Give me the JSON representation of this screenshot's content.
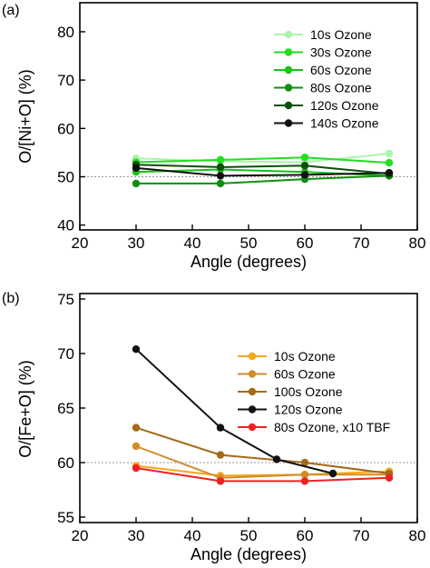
{
  "chart_data": [
    {
      "type": "line",
      "panel_label": "(a)",
      "xlabel": "Angle (degrees)",
      "ylabel": "O/[Ni+O] (%)",
      "xlim": [
        20,
        80
      ],
      "ylim": [
        39,
        86
      ],
      "xticks": [
        20,
        30,
        40,
        50,
        60,
        70,
        80
      ],
      "yticks": [
        40,
        50,
        60,
        70,
        80
      ],
      "reference_line": 50,
      "legend_position": "top-right",
      "x": [
        30,
        45,
        60,
        75
      ],
      "series": [
        {
          "name": "10s Ozone",
          "color": "#aaf5aa",
          "values": [
            53.8,
            53.2,
            53.0,
            54.8
          ]
        },
        {
          "name": "30s Ozone",
          "color": "#22dd22",
          "values": [
            53.0,
            53.5,
            54.0,
            52.9
          ]
        },
        {
          "name": "60s Ozone",
          "color": "#16c216",
          "values": [
            51.0,
            51.5,
            51.0,
            50.2
          ]
        },
        {
          "name": "80s Ozone",
          "color": "#0f900f",
          "values": [
            48.6,
            48.6,
            49.5,
            50.2
          ]
        },
        {
          "name": "120s Ozone",
          "color": "#0b4f0b",
          "values": [
            52.5,
            52.0,
            52.3,
            50.6
          ]
        },
        {
          "name": "140s Ozone",
          "color": "#111111",
          "values": [
            51.8,
            50.2,
            50.4,
            50.8
          ]
        }
      ]
    },
    {
      "type": "line",
      "panel_label": "(b)",
      "xlabel": "Angle (degrees)",
      "ylabel": "O/[Fe+O] (%)",
      "xlim": [
        20,
        80
      ],
      "ylim": [
        54.5,
        75.5
      ],
      "xticks": [
        20,
        30,
        40,
        50,
        60,
        70,
        80
      ],
      "yticks": [
        55,
        60,
        65,
        70,
        75
      ],
      "reference_line": 60,
      "legend_position": "top-right",
      "series": [
        {
          "name": "10s Ozone",
          "color": "#f5a81e",
          "x": [
            30,
            45,
            60,
            75
          ],
          "values": [
            59.7,
            58.8,
            58.9,
            59.2
          ]
        },
        {
          "name": "60s Ozone",
          "color": "#d08d2a",
          "x": [
            30,
            45,
            60,
            75
          ],
          "values": [
            61.5,
            58.6,
            58.9,
            58.9
          ]
        },
        {
          "name": "100s Ozone",
          "color": "#a36a1a",
          "x": [
            30,
            45,
            60,
            75
          ],
          "values": [
            63.2,
            60.7,
            60.0,
            59.0
          ]
        },
        {
          "name": "120s Ozone",
          "color": "#111111",
          "x": [
            30,
            45,
            55,
            65
          ],
          "values": [
            70.4,
            63.2,
            60.3,
            59.0
          ]
        },
        {
          "name": "80s Ozone, x10 TBF",
          "color": "#ee2222",
          "x": [
            30,
            45,
            60,
            75
          ],
          "values": [
            59.5,
            58.3,
            58.3,
            58.6
          ]
        }
      ]
    }
  ]
}
